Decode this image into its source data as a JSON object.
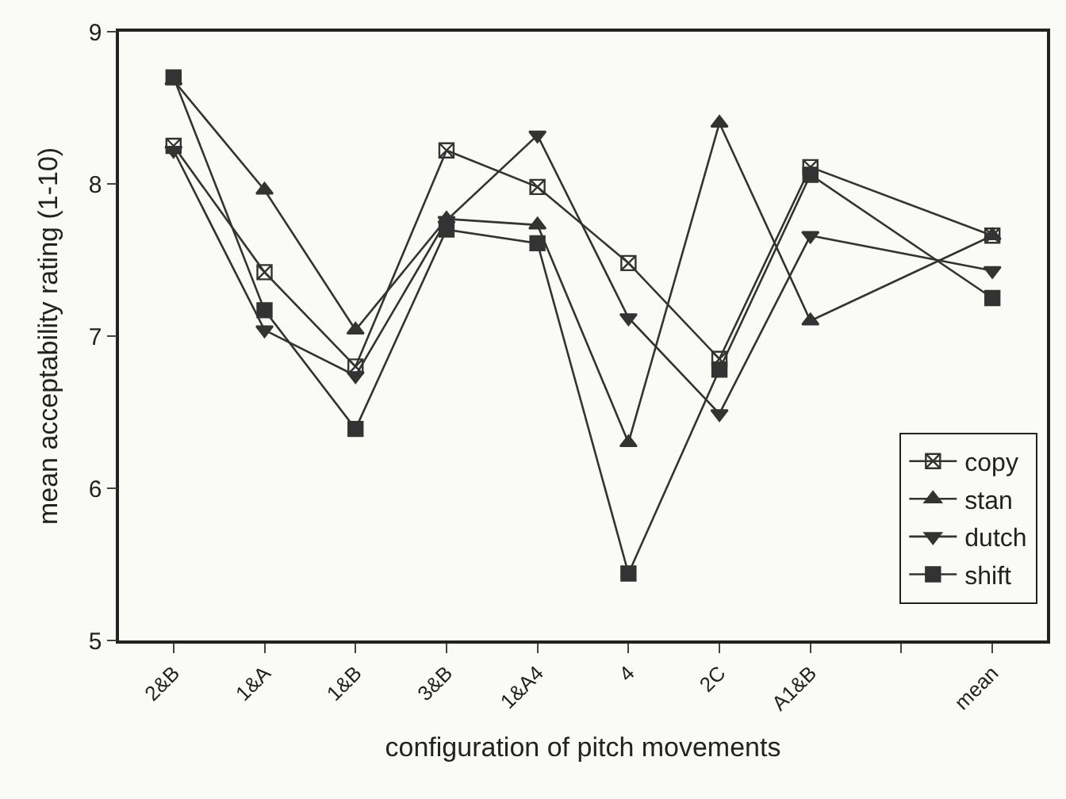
{
  "chart_data": {
    "type": "line",
    "xlabel": "configuration of pitch movements",
    "ylabel": "mean acceptability rating (1-10)",
    "categories": [
      "2&B",
      "1&A",
      "1&B",
      "3&B",
      "1&A4",
      "4",
      "2C",
      "A1&B",
      null,
      "mean"
    ],
    "ylim": [
      5,
      9
    ],
    "yticks": [
      5,
      6,
      7,
      8,
      9
    ],
    "grid": false,
    "legend": "right",
    "series": [
      {
        "name": "copy",
        "color": "#333333",
        "marker": "cross",
        "values": [
          8.25,
          7.42,
          6.8,
          8.22,
          7.98,
          7.48,
          6.85,
          8.11,
          null,
          7.66
        ]
      },
      {
        "name": "stan",
        "color": "#333333",
        "marker": "triangle",
        "values": [
          8.68,
          7.96,
          7.04,
          7.77,
          7.73,
          6.3,
          8.4,
          7.1,
          null,
          7.66
        ]
      },
      {
        "name": "dutch",
        "color": "#333333",
        "marker": "triangle",
        "values": [
          8.22,
          7.04,
          6.74,
          7.76,
          8.32,
          7.12,
          6.49,
          7.66,
          null,
          7.43
        ]
      },
      {
        "name": "shift",
        "color": "#333333",
        "marker": "square",
        "values": [
          8.7,
          7.17,
          6.39,
          7.7,
          7.61,
          5.44,
          6.78,
          8.06,
          null,
          7.25
        ]
      }
    ]
  }
}
